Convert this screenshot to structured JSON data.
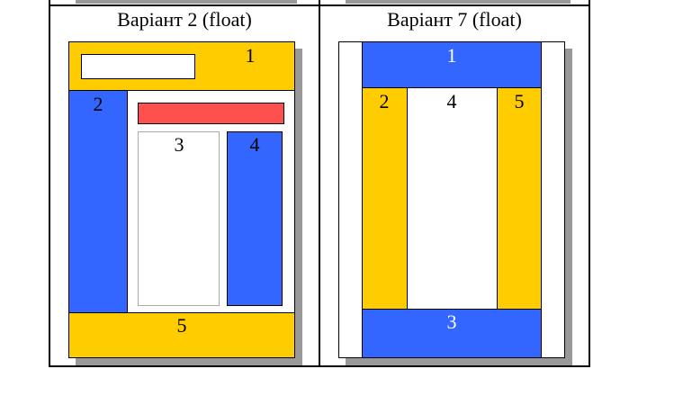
{
  "variants": [
    {
      "caption": "Варіант 2 (float)",
      "blocks": {
        "b1": "1",
        "b2": "2",
        "b3": "3",
        "b4": "4",
        "b5": "5"
      }
    },
    {
      "caption": "Варіант 7 (float)",
      "blocks": {
        "b1": "1",
        "b2": "2",
        "b3": "3",
        "b4": "4",
        "b5": "5"
      }
    }
  ],
  "colors": {
    "yellow": "#FFCC00",
    "blue": "#3366FF",
    "red": "#FF5050",
    "shadow": "#999999",
    "border": "#000000",
    "white": "#FFFFFF"
  }
}
